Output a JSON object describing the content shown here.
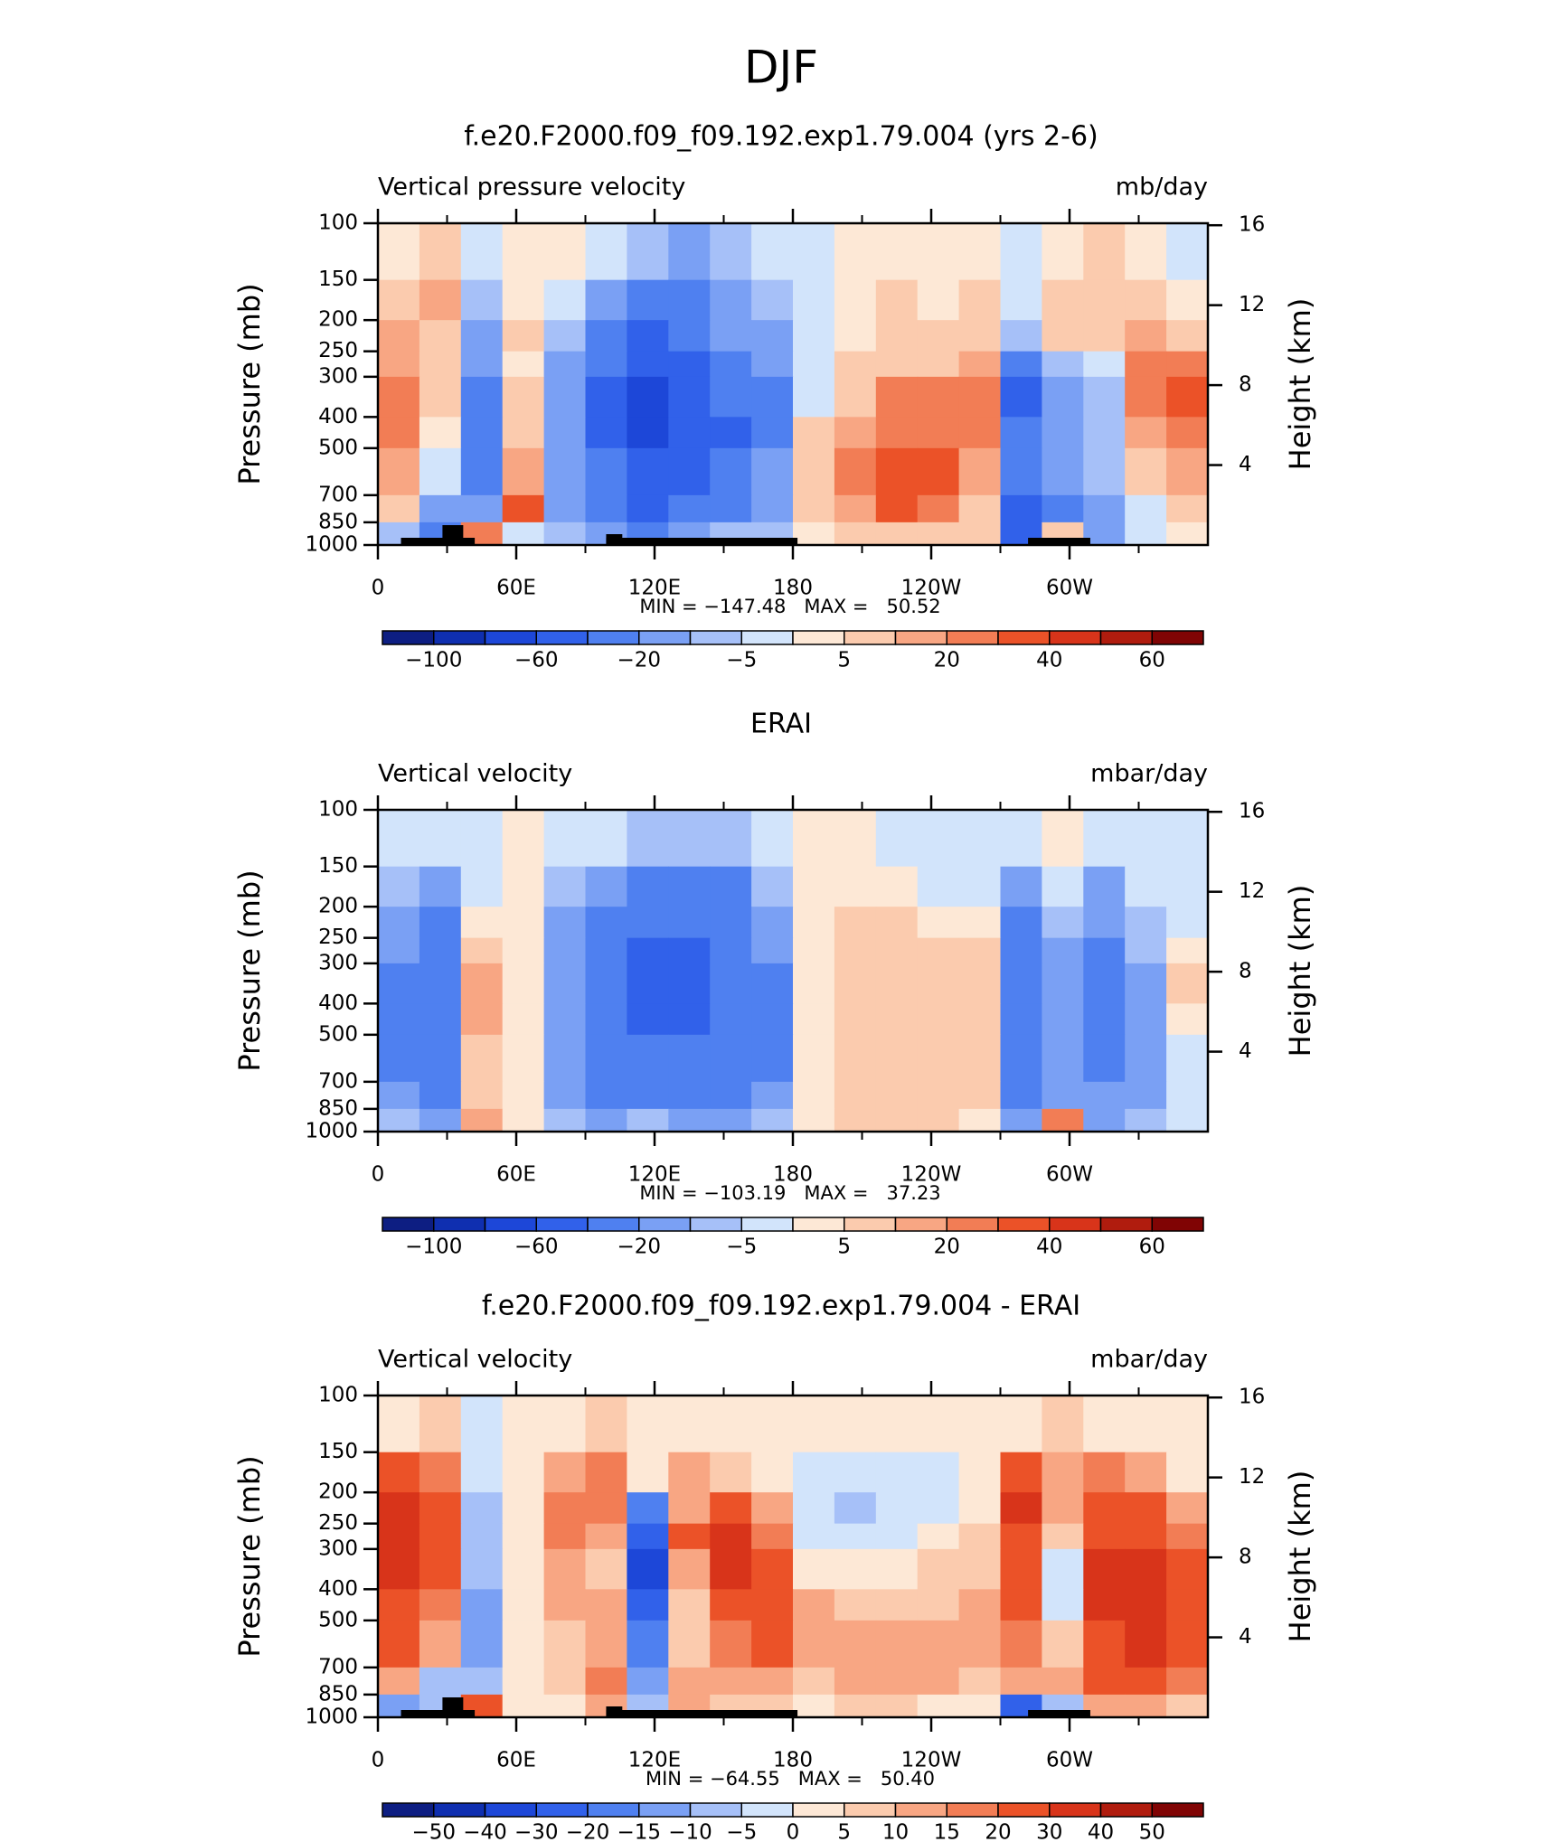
{
  "title": "DJF",
  "chart_data": [
    {
      "type": "contour",
      "title": "f.e20.F2000.f09_f09.192.exp1.79.004 (yrs 2-6)",
      "left_label": "Vertical pressure velocity",
      "right_label": "mb/day",
      "ylabel": "Pressure (mb)",
      "y2label": "Height (km)",
      "stats": "MIN = −147.48   MAX =   50.52",
      "xlim": [
        0,
        360
      ],
      "xticks": [
        0,
        {
          "value": 60,
          "label": "60E"
        },
        {
          "value": 120,
          "label": "120E"
        },
        180,
        {
          "value": 240,
          "label": "120W"
        },
        {
          "value": 300,
          "label": "60W"
        }
      ],
      "ylim": [
        1000,
        100
      ],
      "yscale": "log",
      "yticks": [
        100,
        150,
        200,
        250,
        300,
        400,
        500,
        700,
        850,
        1000
      ],
      "y2lim": [
        0,
        16.1
      ],
      "y2ticks": [
        4,
        8,
        12,
        16
      ],
      "values": [
        [
          2,
          5,
          -3,
          2,
          0,
          -5,
          -10,
          -15,
          -10,
          -5,
          -3,
          2,
          3,
          2,
          0,
          -3,
          3,
          5,
          3,
          -2
        ],
        [
          10,
          15,
          -10,
          3,
          -5,
          -15,
          -30,
          -30,
          -20,
          -10,
          -5,
          3,
          5,
          3,
          5,
          -5,
          10,
          5,
          10,
          3
        ],
        [
          15,
          10,
          -20,
          5,
          -10,
          -30,
          -50,
          -40,
          -20,
          -15,
          -5,
          3,
          5,
          5,
          8,
          -10,
          8,
          5,
          15,
          10
        ],
        [
          15,
          8,
          -20,
          3,
          -15,
          -40,
          -60,
          -50,
          -30,
          -20,
          -3,
          5,
          10,
          10,
          15,
          -40,
          -10,
          -5,
          20,
          25
        ],
        [
          25,
          5,
          -30,
          5,
          -15,
          -50,
          -80,
          -60,
          -40,
          -25,
          -3,
          10,
          20,
          20,
          25,
          -50,
          -20,
          -10,
          20,
          30
        ],
        [
          20,
          3,
          -30,
          10,
          -20,
          -50,
          -80,
          -60,
          -60,
          -30,
          5,
          15,
          25,
          25,
          20,
          -40,
          -20,
          -10,
          15,
          25
        ],
        [
          15,
          -5,
          -30,
          15,
          -20,
          -40,
          -60,
          -50,
          -40,
          -20,
          10,
          20,
          30,
          30,
          15,
          -40,
          -20,
          -10,
          10,
          15
        ],
        [
          5,
          -20,
          -20,
          30,
          -15,
          -30,
          -50,
          -40,
          -30,
          -20,
          5,
          15,
          30,
          25,
          10,
          -50,
          -30,
          -15,
          -5,
          5
        ],
        [
          -10,
          -40,
          20,
          -3,
          -10,
          -20,
          -30,
          -20,
          -10,
          -10,
          3,
          8,
          10,
          10,
          5,
          -60,
          10,
          -20,
          -5,
          3
        ]
      ],
      "colorbar": {
        "colors": [
          "#0d1e82",
          "#0f2fb0",
          "#1d47d8",
          "#3161ea",
          "#4f80f0",
          "#7aa0f4",
          "#a6c0f8",
          "#d2e4fb",
          "#fde8d6",
          "#fbcbae",
          "#f8a683",
          "#f27d55",
          "#eb5228",
          "#d8341a",
          "#b01c0e",
          "#800404"
        ],
        "ticks": [
          {
            "value": -100,
            "label": "−100"
          },
          {
            "value": -60,
            "label": "−60"
          },
          {
            "value": -20,
            "label": "−20"
          },
          {
            "value": -5,
            "label": "−5"
          },
          5,
          20,
          40,
          60
        ]
      }
    },
    {
      "type": "contour",
      "title": "ERAI",
      "left_label": "Vertical velocity",
      "right_label": "mbar/day",
      "ylabel": "Pressure (mb)",
      "y2label": "Height (km)",
      "stats": "MIN = −103.19   MAX =   37.23",
      "xlim": [
        0,
        360
      ],
      "xticks": [
        0,
        {
          "value": 60,
          "label": "60E"
        },
        {
          "value": 120,
          "label": "120E"
        },
        180,
        {
          "value": 240,
          "label": "120W"
        },
        {
          "value": 300,
          "label": "60W"
        }
      ],
      "ylim": [
        1000,
        100
      ],
      "yscale": "log",
      "yticks": [
        100,
        150,
        200,
        250,
        300,
        400,
        500,
        700,
        850,
        1000
      ],
      "y2lim": [
        0,
        16.1
      ],
      "y2ticks": [
        4,
        8,
        12,
        16
      ],
      "values": [
        [
          -3,
          -5,
          -3,
          2,
          -3,
          -5,
          -10,
          -10,
          -10,
          -5,
          3,
          3,
          -3,
          -3,
          -3,
          -5,
          3,
          -3,
          -3,
          -3
        ],
        [
          -10,
          -20,
          -3,
          3,
          -10,
          -20,
          -30,
          -30,
          -25,
          -10,
          3,
          3,
          3,
          -3,
          -3,
          -15,
          -5,
          -15,
          -5,
          -3
        ],
        [
          -20,
          -30,
          3,
          3,
          -15,
          -30,
          -40,
          -40,
          -35,
          -15,
          3,
          5,
          8,
          3,
          3,
          -30,
          -10,
          -20,
          -10,
          -3
        ],
        [
          -20,
          -35,
          10,
          3,
          -20,
          -35,
          -45,
          -45,
          -40,
          -20,
          3,
          8,
          10,
          10,
          8,
          -35,
          -15,
          -25,
          -10,
          3
        ],
        [
          -25,
          -35,
          15,
          3,
          -20,
          -40,
          -50,
          -45,
          -40,
          -25,
          3,
          8,
          10,
          12,
          12,
          -40,
          -20,
          -30,
          -15,
          5
        ],
        [
          -25,
          -35,
          15,
          3,
          -20,
          -40,
          -45,
          -45,
          -40,
          -25,
          3,
          5,
          10,
          12,
          12,
          -40,
          -20,
          -30,
          -15,
          3
        ],
        [
          -25,
          -35,
          10,
          3,
          -20,
          -35,
          -40,
          -40,
          -35,
          -25,
          3,
          5,
          10,
          12,
          12,
          -40,
          -20,
          -25,
          -15,
          -3
        ],
        [
          -20,
          -25,
          10,
          3,
          -15,
          -25,
          -30,
          -30,
          -30,
          -20,
          3,
          8,
          12,
          10,
          10,
          -30,
          -20,
          -20,
          -15,
          -5
        ],
        [
          -10,
          -20,
          15,
          3,
          -10,
          -15,
          -10,
          -15,
          -15,
          -10,
          3,
          8,
          8,
          5,
          3,
          -20,
          20,
          -15,
          -10,
          -5
        ]
      ],
      "colorbar": {
        "colors": [
          "#0d1e82",
          "#0f2fb0",
          "#1d47d8",
          "#3161ea",
          "#4f80f0",
          "#7aa0f4",
          "#a6c0f8",
          "#d2e4fb",
          "#fde8d6",
          "#fbcbae",
          "#f8a683",
          "#f27d55",
          "#eb5228",
          "#d8341a",
          "#b01c0e",
          "#800404"
        ],
        "ticks": [
          {
            "value": -100,
            "label": "−100"
          },
          {
            "value": -60,
            "label": "−60"
          },
          {
            "value": -20,
            "label": "−20"
          },
          {
            "value": -5,
            "label": "−5"
          },
          5,
          20,
          40,
          60
        ]
      }
    },
    {
      "type": "contour",
      "title": "f.e20.F2000.f09_f09.192.exp1.79.004 - ERAI",
      "left_label": "Vertical velocity",
      "right_label": "mbar/day",
      "ylabel": "Pressure (mb)",
      "y2label": "Height (km)",
      "stats": "MIN = −64.55   MAX =   50.40",
      "xlim": [
        0,
        360
      ],
      "xticks": [
        0,
        {
          "value": 60,
          "label": "60E"
        },
        {
          "value": 120,
          "label": "120E"
        },
        180,
        {
          "value": 240,
          "label": "120W"
        },
        {
          "value": 300,
          "label": "60W"
        }
      ],
      "ylim": [
        1000,
        100
      ],
      "yscale": "log",
      "yticks": [
        100,
        150,
        200,
        250,
        300,
        400,
        500,
        700,
        850,
        1000
      ],
      "y2lim": [
        0,
        16.1
      ],
      "y2ticks": [
        4,
        8,
        12,
        16
      ],
      "values": [
        [
          3,
          5,
          -3,
          3,
          3,
          5,
          3,
          3,
          3,
          3,
          3,
          0,
          3,
          3,
          3,
          3,
          5,
          3,
          3,
          0
        ],
        [
          20,
          15,
          -5,
          3,
          10,
          15,
          3,
          10,
          5,
          3,
          -3,
          -5,
          -3,
          -3,
          3,
          20,
          10,
          15,
          10,
          3
        ],
        [
          30,
          20,
          -10,
          3,
          15,
          15,
          -20,
          10,
          20,
          10,
          -3,
          -10,
          -3,
          -3,
          3,
          30,
          10,
          20,
          20,
          10
        ],
        [
          30,
          20,
          -10,
          3,
          15,
          10,
          -30,
          20,
          30,
          15,
          -3,
          -5,
          -3,
          3,
          5,
          25,
          5,
          25,
          25,
          15
        ],
        [
          30,
          20,
          -10,
          3,
          10,
          5,
          -35,
          10,
          30,
          20,
          3,
          3,
          3,
          5,
          8,
          20,
          -5,
          30,
          30,
          25
        ],
        [
          25,
          15,
          -15,
          3,
          10,
          10,
          -30,
          5,
          20,
          25,
          10,
          5,
          8,
          8,
          10,
          20,
          -3,
          30,
          30,
          20
        ],
        [
          20,
          10,
          -15,
          3,
          5,
          10,
          -20,
          5,
          15,
          20,
          10,
          10,
          10,
          10,
          10,
          15,
          5,
          25,
          30,
          20
        ],
        [
          10,
          -10,
          -10,
          3,
          5,
          15,
          -15,
          10,
          10,
          10,
          5,
          10,
          10,
          10,
          5,
          10,
          10,
          20,
          20,
          15
        ],
        [
          -15,
          -10,
          20,
          3,
          3,
          10,
          -10,
          10,
          5,
          5,
          3,
          5,
          5,
          3,
          3,
          -30,
          -10,
          10,
          10,
          5
        ]
      ],
      "colorbar": {
        "colors": [
          "#0d1e82",
          "#0f2fb0",
          "#1d47d8",
          "#3161ea",
          "#4f80f0",
          "#7aa0f4",
          "#a6c0f8",
          "#d2e4fb",
          "#fde8d6",
          "#fbcbae",
          "#f8a683",
          "#f27d55",
          "#eb5228",
          "#d8341a",
          "#b01c0e",
          "#800404"
        ],
        "ticks": [
          {
            "value": -50,
            "label": "−50"
          },
          {
            "value": -40,
            "label": "−40"
          },
          {
            "value": -30,
            "label": "−30"
          },
          {
            "value": -20,
            "label": "−20"
          },
          {
            "value": -15,
            "label": "−15"
          },
          {
            "value": -10,
            "label": "−10"
          },
          {
            "value": -5,
            "label": "−5"
          },
          0,
          5,
          10,
          15,
          20,
          30,
          40,
          50
        ]
      }
    }
  ]
}
